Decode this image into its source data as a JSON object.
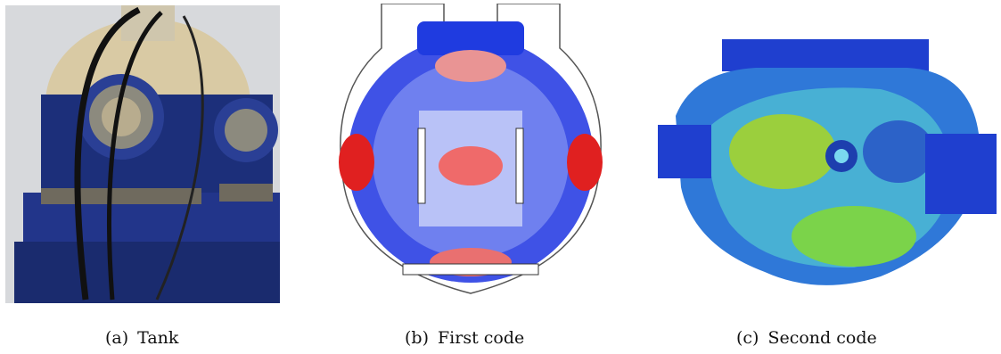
{
  "figure": {
    "panels": [
      {
        "label": "(a)",
        "caption": "Tank",
        "image": "photograph-of-tank-test-rig"
      },
      {
        "label": "(b)",
        "caption": "First code",
        "image": "stress-contour-cross-section"
      },
      {
        "label": "(c)",
        "caption": "Second code",
        "image": "stress-contour-3d-tank"
      }
    ]
  },
  "colors": {
    "tank_blue": "#1c2f7a",
    "tank_beige": "#d9caa4",
    "contour_blue": "#2b3fe0",
    "contour_red": "#e02020",
    "contour_green": "#7bd34a"
  }
}
